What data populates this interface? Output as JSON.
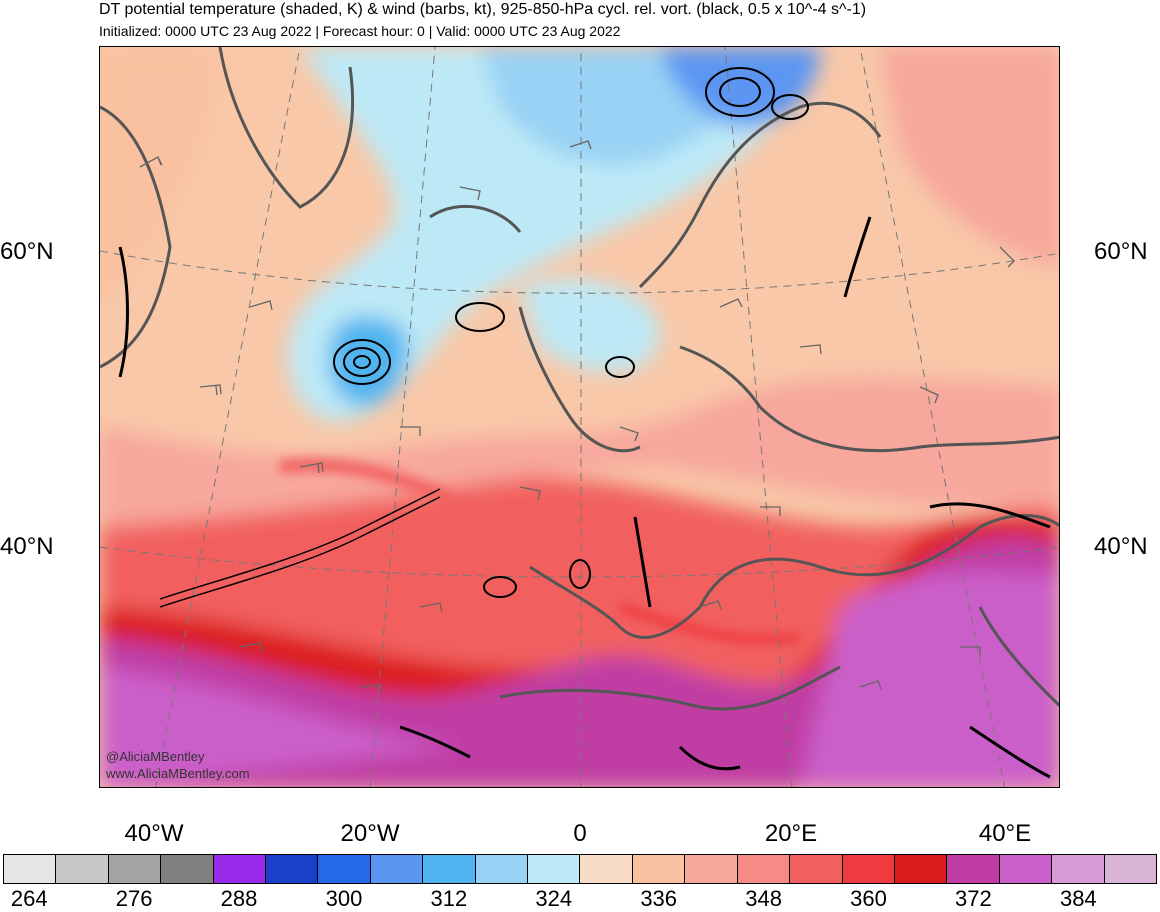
{
  "header": {
    "title": "DT potential temperature (shaded, K) & wind (barbs, kt), 925-850-hPa cycl. rel. vort. (black, 0.5 x 10^-4 s^-1)",
    "subtitle": "Initialized: 0000 UTC 23 Aug 2022 | Forecast hour: 0 | Valid: 0000 UTC 23 Aug 2022"
  },
  "map": {
    "lat_labels": {
      "north_60": "60°N",
      "north_40": "40°N"
    },
    "lon_labels": [
      "40°W",
      "20°W",
      "0",
      "20°E",
      "40°E"
    ],
    "credit": [
      "@AliciaMBentley",
      "www.AliciaMBentley.com"
    ],
    "field_description": "Shaded dynamic tropopause potential temperature with wind barbs and cyclonic relative vorticity contours"
  },
  "colorbar": {
    "colors": [
      "#e5e5e5",
      "#c8c8c8",
      "#a4a4a4",
      "#808080",
      "#9b2bea",
      "#1a3fc8",
      "#2469e6",
      "#5b96f2",
      "#50b4f0",
      "#98d2f4",
      "#bde9f6",
      "#f9dcc6",
      "#f9c19f",
      "#f7a79c",
      "#f58a87",
      "#f1605f",
      "#ee3b3f",
      "#dc1c1c",
      "#c03da4",
      "#cb5ec9",
      "#d99bd6",
      "#d9b4d6"
    ],
    "tick_labels": [
      "264",
      "276",
      "288",
      "300",
      "312",
      "324",
      "336",
      "348",
      "360",
      "372",
      "384"
    ]
  }
}
